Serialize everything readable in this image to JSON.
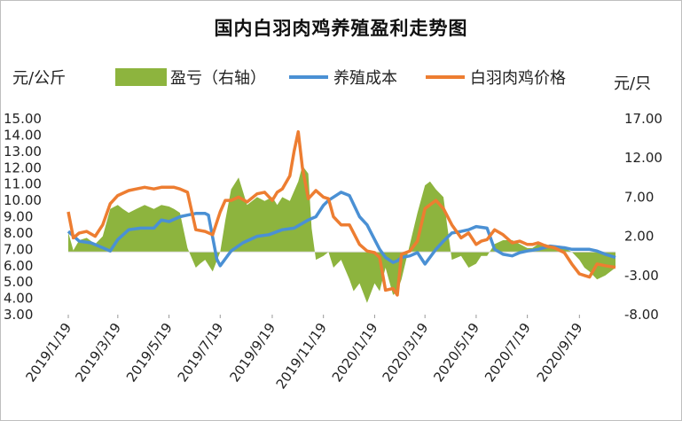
{
  "title": "国内白羽肉鸡养殖盈利走势图",
  "unit_left": "元/公斤",
  "unit_right": "元/只",
  "colors": {
    "profit": "#8db43e",
    "cost": "#4a90d4",
    "price": "#ed7d31"
  },
  "chart_data": {
    "type": "line",
    "title": "国内白羽肉鸡养殖盈利走势图",
    "ylabel_left": "元/公斤",
    "ylabel_right": "元/只",
    "ylim_left": [
      3.0,
      15.0
    ],
    "ylim_right": [
      -8.0,
      17.0
    ],
    "yticks_left": [
      "15.00",
      "14.00",
      "13.00",
      "12.00",
      "11.00",
      "10.00",
      "9.00",
      "8.00",
      "7.00",
      "6.00",
      "5.00",
      "4.00",
      "3.00"
    ],
    "yticks_right": [
      "17.00",
      "12.00",
      "7.00",
      "2.00",
      "-3.00",
      "-8.00"
    ],
    "xticks": [
      "2019/1/19",
      "2019/3/19",
      "2019/5/19",
      "2019/7/19",
      "2019/9/19",
      "2019/11/19",
      "2020/1/19",
      "2020/3/19",
      "2020/5/19",
      "2020/7/19",
      "2020/9/19"
    ],
    "x_range": [
      "2019/1/19",
      "2020/11/1"
    ],
    "legend": [
      "盈亏（右轴）",
      "养殖成本",
      "白羽肉鸡价格"
    ],
    "series": [
      {
        "name": "盈亏（右轴）",
        "type": "area",
        "axis": "right",
        "x": [
          "2019/1/19",
          "2019/1/25",
          "2019/2/1",
          "2019/2/10",
          "2019/2/20",
          "2019/3/1",
          "2019/3/10",
          "2019/3/19",
          "2019/3/25",
          "2019/4/1",
          "2019/4/10",
          "2019/4/20",
          "2019/5/1",
          "2019/5/10",
          "2019/5/19",
          "2019/5/25",
          "2019/6/1",
          "2019/6/10",
          "2019/6/20",
          "2019/6/25",
          "2019/7/1",
          "2019/7/10",
          "2019/7/19",
          "2019/7/25",
          "2019/8/1",
          "2019/8/10",
          "2019/8/20",
          "2019/9/1",
          "2019/9/10",
          "2019/9/19",
          "2019/9/25",
          "2019/10/1",
          "2019/10/10",
          "2019/10/20",
          "2019/10/25",
          "2019/11/1",
          "2019/11/5",
          "2019/11/10",
          "2019/11/19",
          "2019/11/25",
          "2019/12/1",
          "2019/12/10",
          "2019/12/20",
          "2019/12/25",
          "2020/1/1",
          "2020/1/10",
          "2020/1/19",
          "2020/1/25",
          "2020/2/1",
          "2020/2/10",
          "2020/2/15",
          "2020/2/20",
          "2020/3/1",
          "2020/3/10",
          "2020/3/19",
          "2020/3/25",
          "2020/4/1",
          "2020/4/10",
          "2020/4/15",
          "2020/4/20",
          "2020/5/1",
          "2020/5/10",
          "2020/5/19",
          "2020/5/25",
          "2020/6/1",
          "2020/6/10",
          "2020/6/20",
          "2020/7/1",
          "2020/7/10",
          "2020/7/19",
          "2020/7/25",
          "2020/8/1",
          "2020/8/10",
          "2020/8/20",
          "2020/9/1",
          "2020/9/10",
          "2020/9/19",
          "2020/9/25",
          "2020/10/1",
          "2020/10/10",
          "2020/10/20",
          "2020/11/1"
        ],
        "values": [
          2.5,
          0.2,
          1.5,
          1.8,
          1.0,
          2.0,
          5.5,
          6.0,
          5.5,
          5.0,
          5.5,
          6.0,
          5.5,
          6.0,
          5.8,
          5.5,
          5.0,
          0.5,
          -2.0,
          -1.5,
          -1.0,
          -2.5,
          0.0,
          4.0,
          8.0,
          9.5,
          6.0,
          7.0,
          6.5,
          7.0,
          6.0,
          7.0,
          6.5,
          9.0,
          11.0,
          10.0,
          3.0,
          -1.0,
          -0.5,
          0.0,
          -2.0,
          -1.0,
          -3.5,
          -5.0,
          -4.0,
          -6.5,
          -4.0,
          -5.0,
          -2.0,
          -5.5,
          -5.0,
          -3.5,
          1.0,
          5.0,
          8.5,
          9.0,
          8.0,
          7.0,
          3.0,
          -1.0,
          -0.5,
          -2.0,
          -1.5,
          -0.5,
          -0.5,
          1.0,
          1.5,
          1.5,
          1.0,
          0.5,
          0.5,
          1.0,
          1.0,
          0.5,
          0.5,
          0.0,
          -1.0,
          -2.0,
          -2.5,
          -3.5,
          -3.0,
          -2.0
        ]
      },
      {
        "name": "养殖成本",
        "type": "line",
        "axis": "left",
        "x": [
          "2019/1/19",
          "2019/2/1",
          "2019/2/15",
          "2019/3/1",
          "2019/3/10",
          "2019/3/19",
          "2019/4/1",
          "2019/4/15",
          "2019/5/1",
          "2019/5/10",
          "2019/5/19",
          "2019/6/1",
          "2019/6/10",
          "2019/6/20",
          "2019/7/1",
          "2019/7/5",
          "2019/7/15",
          "2019/7/19",
          "2019/8/1",
          "2019/8/15",
          "2019/9/1",
          "2019/9/15",
          "2019/10/1",
          "2019/10/15",
          "2019/11/1",
          "2019/11/10",
          "2019/11/19",
          "2019/11/25",
          "2019/12/1",
          "2019/12/10",
          "2019/12/20",
          "2020/1/1",
          "2020/1/10",
          "2020/1/15",
          "2020/1/25",
          "2020/2/1",
          "2020/2/10",
          "2020/2/15",
          "2020/2/20",
          "2020/3/1",
          "2020/3/10",
          "2020/3/19",
          "2020/4/1",
          "2020/4/10",
          "2020/4/20",
          "2020/5/1",
          "2020/5/10",
          "2020/5/19",
          "2020/6/1",
          "2020/6/10",
          "2020/6/20",
          "2020/7/1",
          "2020/7/10",
          "2020/7/19",
          "2020/8/1",
          "2020/8/15",
          "2020/9/1",
          "2020/9/10",
          "2020/9/19",
          "2020/10/1",
          "2020/10/10",
          "2020/10/20",
          "2020/11/1"
        ],
        "values": [
          8.1,
          7.5,
          7.4,
          7.1,
          6.9,
          7.6,
          8.2,
          8.3,
          8.3,
          8.8,
          8.7,
          9.0,
          9.1,
          9.2,
          9.2,
          9.1,
          6.4,
          6.0,
          6.9,
          7.4,
          7.8,
          7.9,
          8.2,
          8.3,
          8.8,
          9.0,
          9.7,
          10.0,
          10.2,
          10.5,
          10.3,
          9.0,
          8.5,
          8.0,
          7.0,
          6.5,
          6.2,
          6.3,
          6.5,
          6.6,
          6.8,
          6.1,
          7.0,
          7.5,
          8.0,
          8.1,
          8.2,
          8.4,
          8.3,
          7.0,
          6.7,
          6.6,
          6.8,
          6.9,
          7.0,
          7.2,
          7.1,
          7.0,
          7.0,
          7.0,
          6.9,
          6.7,
          6.5
        ]
      },
      {
        "name": "白羽肉鸡价格",
        "type": "line",
        "axis": "left",
        "x": [
          "2019/1/19",
          "2019/1/25",
          "2019/2/1",
          "2019/2/10",
          "2019/2/20",
          "2019/3/1",
          "2019/3/10",
          "2019/3/19",
          "2019/4/1",
          "2019/4/10",
          "2019/4/20",
          "2019/5/1",
          "2019/5/10",
          "2019/5/19",
          "2019/5/25",
          "2019/6/1",
          "2019/6/10",
          "2019/6/20",
          "2019/7/1",
          "2019/7/10",
          "2019/7/19",
          "2019/7/25",
          "2019/8/1",
          "2019/8/10",
          "2019/8/20",
          "2019/9/1",
          "2019/9/10",
          "2019/9/19",
          "2019/9/25",
          "2019/10/1",
          "2019/10/10",
          "2019/10/15",
          "2019/10/20",
          "2019/10/25",
          "2019/11/1",
          "2019/11/10",
          "2019/11/19",
          "2019/11/25",
          "2019/12/1",
          "2019/12/10",
          "2019/12/20",
          "2020/1/1",
          "2020/1/10",
          "2020/1/19",
          "2020/1/25",
          "2020/2/1",
          "2020/2/10",
          "2020/2/15",
          "2020/2/20",
          "2020/3/1",
          "2020/3/10",
          "2020/3/19",
          "2020/4/1",
          "2020/4/10",
          "2020/4/20",
          "2020/5/1",
          "2020/5/10",
          "2020/5/19",
          "2020/5/25",
          "2020/6/1",
          "2020/6/10",
          "2020/6/20",
          "2020/7/1",
          "2020/7/10",
          "2020/7/19",
          "2020/7/25",
          "2020/8/1",
          "2020/8/10",
          "2020/8/20",
          "2020/9/1",
          "2020/9/10",
          "2020/9/19",
          "2020/9/25",
          "2020/10/1",
          "2020/10/10",
          "2020/10/20",
          "2020/11/1"
        ],
        "values": [
          9.3,
          7.7,
          8.0,
          8.1,
          7.8,
          8.5,
          9.8,
          10.3,
          10.6,
          10.7,
          10.8,
          10.7,
          10.8,
          10.8,
          10.8,
          10.7,
          10.5,
          8.2,
          8.1,
          7.9,
          9.3,
          10.0,
          10.0,
          10.2,
          9.9,
          10.4,
          10.5,
          10.0,
          10.5,
          10.7,
          11.5,
          13.0,
          14.2,
          12.0,
          10.1,
          10.6,
          10.2,
          10.1,
          9.0,
          8.5,
          8.5,
          7.3,
          6.9,
          6.8,
          6.5,
          4.5,
          4.6,
          4.2,
          6.7,
          6.9,
          7.5,
          9.5,
          10.0,
          9.5,
          8.5,
          7.7,
          8.0,
          7.3,
          7.5,
          7.6,
          8.2,
          7.9,
          7.4,
          7.5,
          7.3,
          7.3,
          7.4,
          7.2,
          7.1,
          6.8,
          6.1,
          5.5,
          5.4,
          5.3,
          6.1,
          6.0,
          5.9
        ]
      }
    ]
  }
}
